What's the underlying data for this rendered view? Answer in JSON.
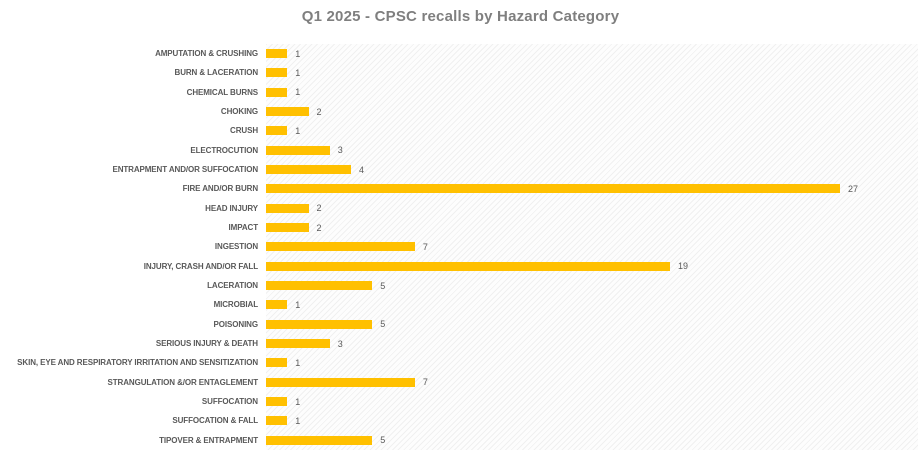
{
  "chart_data": {
    "type": "bar",
    "orientation": "horizontal",
    "title": "Q1 2025 - CPSC recalls by Hazard Category",
    "categories": [
      "AMPUTATION & CRUSHING",
      "BURN & LACERATION",
      "CHEMICAL BURNS",
      "CHOKING",
      "CRUSH",
      "ELECTROCUTION",
      "ENTRAPMENT AND/OR SUFFOCATION",
      "FIRE AND/OR BURN",
      "HEAD INJURY",
      "IMPACT",
      "INGESTION",
      "INJURY, CRASH AND/OR FALL",
      "LACERATION",
      "MICROBIAL",
      "POISONING",
      "SERIOUS INJURY & DEATH",
      "SKIN, EYE AND RESPIRATORY IRRITATION AND SENSITIZATION",
      "STRANGULATION &/OR ENTAGLEMENT",
      "SUFFOCATION",
      "SUFFOCATION & FALL",
      "TIPOVER & ENTRAPMENT"
    ],
    "values": [
      1,
      1,
      1,
      2,
      1,
      3,
      4,
      27,
      2,
      2,
      7,
      19,
      5,
      1,
      5,
      3,
      1,
      7,
      1,
      1,
      5
    ],
    "xlabel": "",
    "ylabel": "",
    "xlim": [
      0,
      30
    ],
    "data_labels": true,
    "grid": false,
    "legend": false,
    "bar_color": "#FFC000",
    "title_color": "#7f7f7f",
    "label_color": "#595959",
    "plot_background": "diagonal-hatch"
  }
}
